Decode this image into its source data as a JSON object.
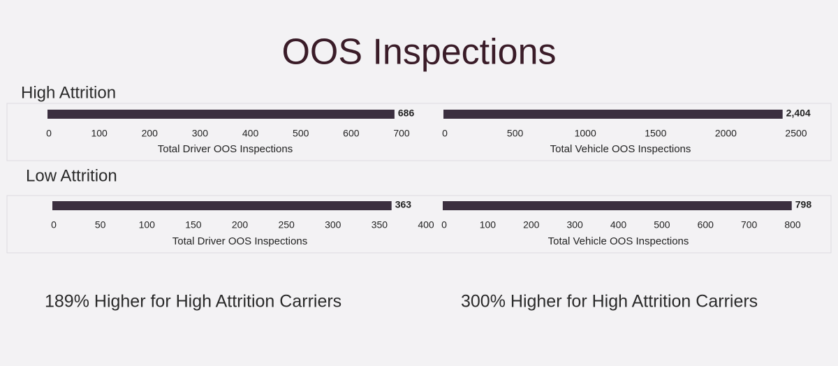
{
  "title": "OOS Inspections",
  "sections": [
    "High Attrition",
    "Low Attrition"
  ],
  "notes": [
    "189%  Higher for High Attrition Carriers",
    "300%  Higher for High Attrition Carriers"
  ],
  "chart_data": [
    {
      "type": "bar",
      "orientation": "horizontal",
      "categories": [
        null
      ],
      "values": [
        686
      ],
      "color": "#3b2f3f",
      "x_label": "Total Driver OOS Inspections",
      "xlim": [
        0,
        700
      ],
      "xticks": [
        0,
        100,
        200,
        300,
        400,
        500,
        600,
        700
      ]
    },
    {
      "type": "bar",
      "orientation": "horizontal",
      "categories": [
        null
      ],
      "values": [
        2404
      ],
      "value_labels": [
        "2,404"
      ],
      "color": "#3b2f3f",
      "x_label": "Total Vehicle OOS Inspections",
      "xlim": [
        0,
        2500
      ],
      "xticks": [
        0,
        500,
        1000,
        1500,
        2000,
        2500
      ]
    },
    {
      "type": "bar",
      "orientation": "horizontal",
      "categories": [
        null
      ],
      "values": [
        363
      ],
      "color": "#3b2f3f",
      "x_label": "Total Driver OOS Inspections",
      "xlim": [
        0,
        400
      ],
      "xticks": [
        0,
        50,
        100,
        150,
        200,
        250,
        300,
        350,
        400
      ]
    },
    {
      "type": "bar",
      "orientation": "horizontal",
      "categories": [
        null
      ],
      "values": [
        798
      ],
      "color": "#3b2f3f",
      "x_label": "Total Vehicle OOS Inspections",
      "xlim": [
        0,
        800
      ],
      "xticks": [
        0,
        100,
        200,
        300,
        400,
        500,
        600,
        700,
        800
      ]
    }
  ]
}
